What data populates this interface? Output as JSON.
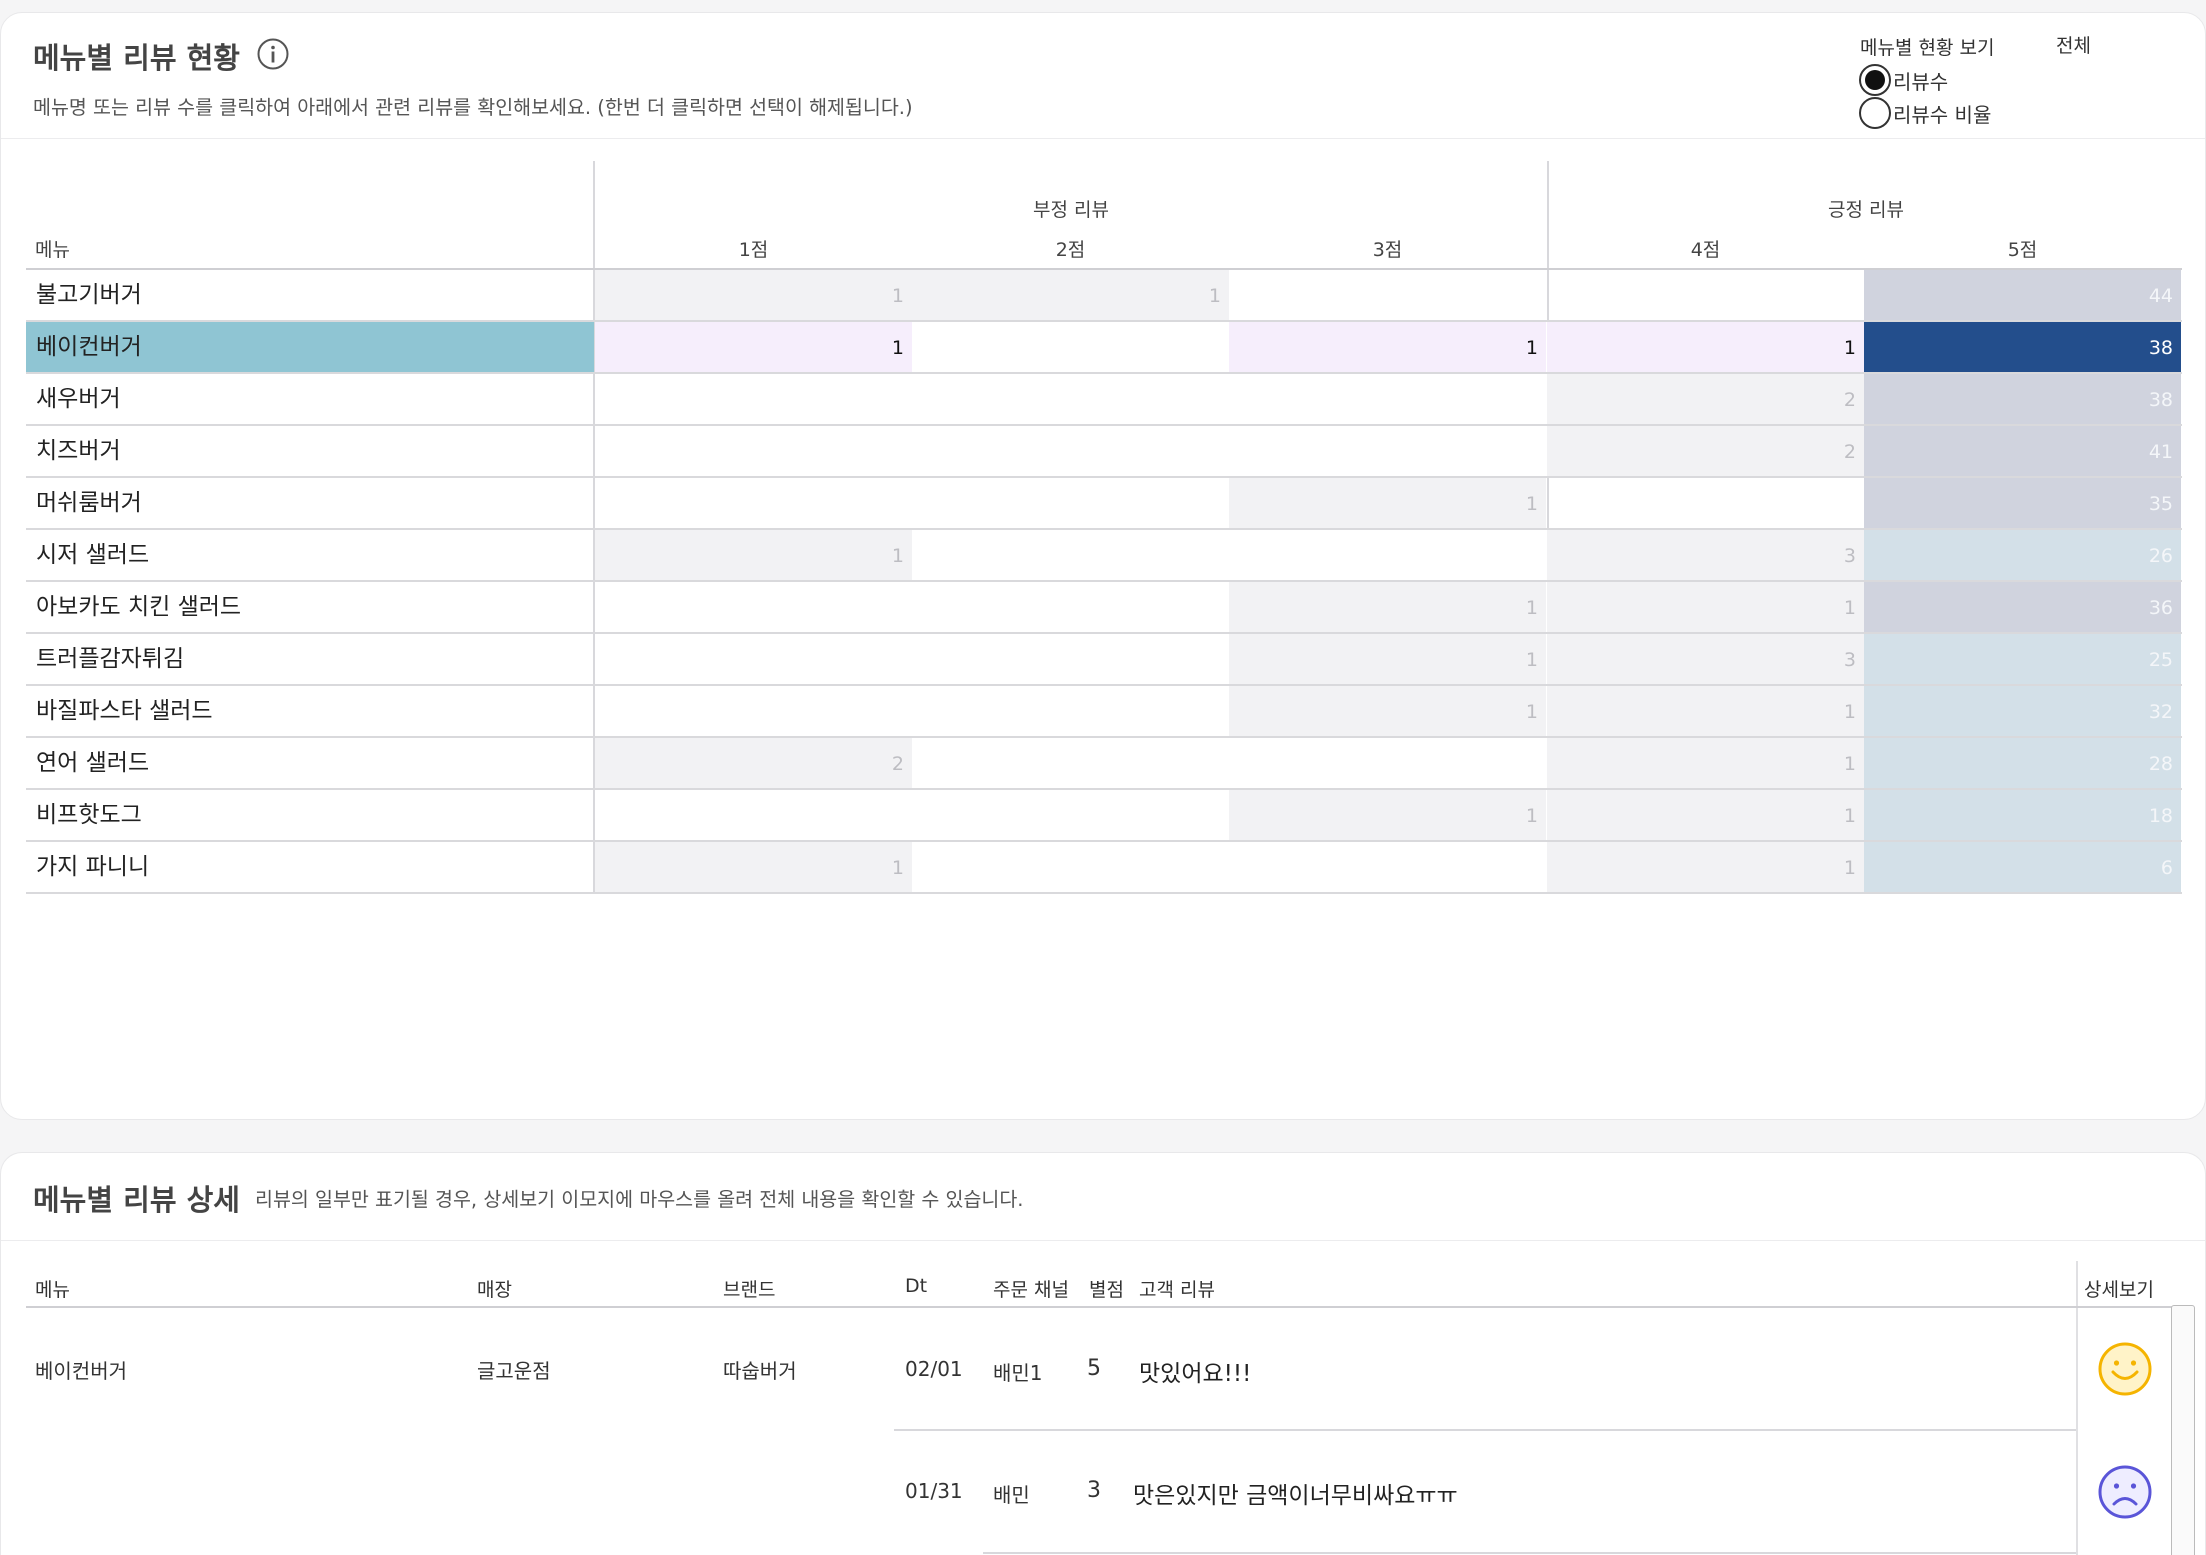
{
  "summary": {
    "title": "메뉴별 리뷰 현황",
    "subtitle": "메뉴명 또는 리뷰 수를 클릭하여 아래에서 관련 리뷰를 확인해보세요. (한번 더 클릭하면 선택이 해제됩니다.)",
    "view_label": "메뉴별 현황 보기",
    "scope_label": "전체",
    "radio_options": [
      {
        "label": "리뷰수",
        "selected": true
      },
      {
        "label": "리뷰수 비율",
        "selected": false
      }
    ],
    "columns": {
      "menu": "메뉴",
      "negative_group": "부정 리뷰",
      "positive_group": "긍정 리뷰",
      "scores": [
        "1점",
        "2점",
        "3점",
        "4점",
        "5점"
      ]
    },
    "selected_row": 1,
    "rows": [
      {
        "menu": "불고기버거",
        "values": [
          "1",
          "1",
          "",
          "",
          "44"
        ]
      },
      {
        "menu": "베이컨버거",
        "values": [
          "1",
          "",
          "1",
          "1",
          "38"
        ]
      },
      {
        "menu": "새우버거",
        "values": [
          "",
          "",
          "",
          "2",
          "38"
        ]
      },
      {
        "menu": "치즈버거",
        "values": [
          "",
          "",
          "",
          "2",
          "41"
        ]
      },
      {
        "menu": "머쉬룸버거",
        "values": [
          "",
          "",
          "1",
          "",
          "35"
        ]
      },
      {
        "menu": "시저 샐러드",
        "values": [
          "1",
          "",
          "",
          "3",
          "26"
        ]
      },
      {
        "menu": "아보카도 치킨 샐러드",
        "values": [
          "",
          "",
          "1",
          "1",
          "36"
        ]
      },
      {
        "menu": "트러플감자튀김",
        "values": [
          "",
          "",
          "1",
          "3",
          "25"
        ]
      },
      {
        "menu": "바질파스타 샐러드",
        "values": [
          "",
          "",
          "1",
          "1",
          "32"
        ]
      },
      {
        "menu": "연어 샐러드",
        "values": [
          "2",
          "",
          "",
          "1",
          "28"
        ]
      },
      {
        "menu": "비프핫도그",
        "values": [
          "",
          "",
          "1",
          "1",
          "18"
        ]
      },
      {
        "menu": "가지 파니니",
        "values": [
          "1",
          "",
          "",
          "1",
          "6"
        ]
      }
    ]
  },
  "detail": {
    "title": "메뉴별 리뷰 상세",
    "subtitle": "리뷰의 일부만 표기될 경우, 상세보기 이모지에 마우스를 올려 전체 내용을 확인할 수 있습니다.",
    "columns": {
      "menu": "메뉴",
      "store": "매장",
      "brand": "브랜드",
      "dt": "Dt",
      "channel": "주문 채널",
      "rating": "별점",
      "review": "고객 리뷰",
      "detail": "상세보기"
    },
    "group": {
      "menu": "베이컨버거",
      "store": "글고운점",
      "brand": "따숩버거"
    },
    "rows": [
      {
        "dt": "02/01",
        "channel": "배민1",
        "rating": "5",
        "review": "맛있어요!!!",
        "emoji": "smile-icon"
      },
      {
        "dt": "01/31",
        "channel": "배민",
        "rating": "3",
        "review": "맛은있지만 금액이너무비싸요ㅠㅠ",
        "emoji": "frown-icon"
      }
    ]
  },
  "colors": {
    "selected_menu_bg": "#8fc5d3",
    "selected_5_bg": "#234e8c",
    "selected_cell_bg": "#f6eefc",
    "muted_cell_bg": "#f2f2f4",
    "smile": "#f5b400",
    "frown": "#5a55d8"
  }
}
